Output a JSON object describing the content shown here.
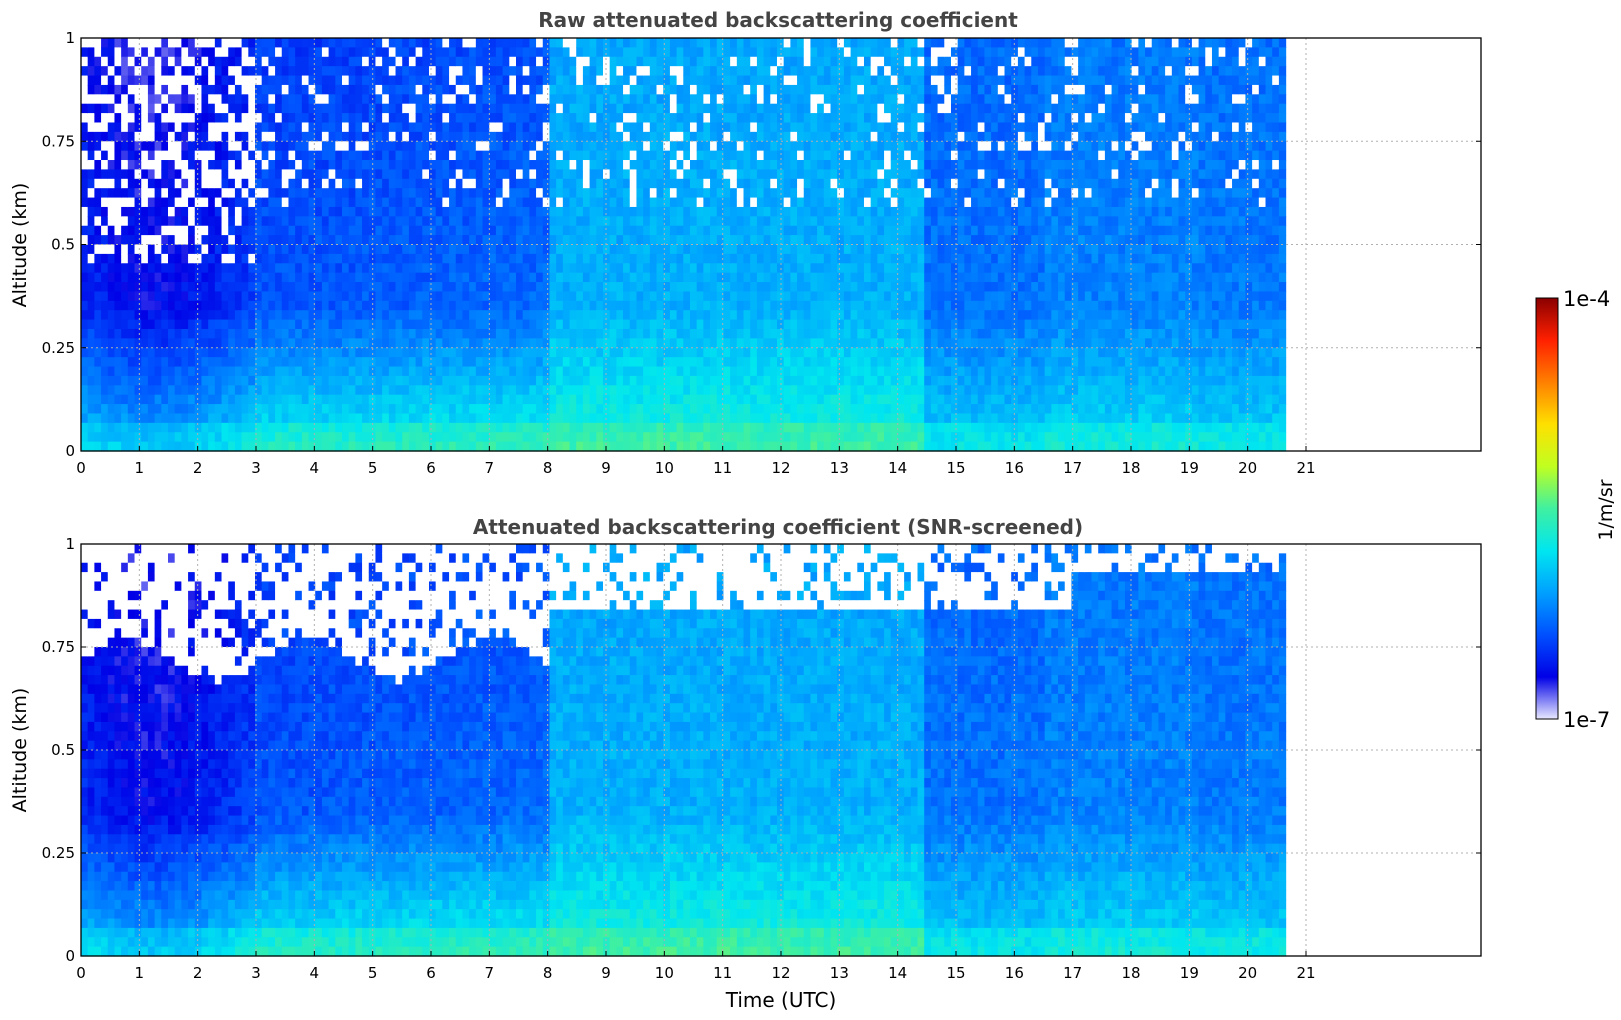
{
  "chart_data": [
    {
      "type": "heatmap",
      "title": "Raw attenuated backscattering coefficient",
      "xlabel": "",
      "ylabel": "Altitude (km)",
      "x_ticks": [
        "0",
        "1",
        "2",
        "3",
        "4",
        "5",
        "6",
        "7",
        "8",
        "9",
        "10",
        "11",
        "12",
        "13",
        "14",
        "15",
        "16",
        "17",
        "18",
        "19",
        "20",
        "21"
      ],
      "y_ticks": [
        "0",
        "0.25",
        "0.5",
        "0.75",
        "1"
      ],
      "xlim": [
        0,
        24
      ],
      "ylim": [
        0,
        1
      ],
      "data_extent_x": [
        0,
        20.65
      ],
      "grid": true,
      "description": "Time-altitude curtain; mostly dark blue above ~0.3 km before 8 UTC with noisy white/blue speckle above ~0.5 km, turning cyan/green after 8 UTC; dark blue patches around 14.4-18 UTC aloft; highest values near the ground."
    },
    {
      "type": "heatmap",
      "title": "Attenuated backscattering coefficient (SNR-screened)",
      "xlabel": "Time (UTC)",
      "ylabel": "Altitude (km)",
      "x_ticks": [
        "0",
        "1",
        "2",
        "3",
        "4",
        "5",
        "6",
        "7",
        "8",
        "9",
        "10",
        "11",
        "12",
        "13",
        "14",
        "15",
        "16",
        "17",
        "18",
        "19",
        "20",
        "21"
      ],
      "y_ticks": [
        "0",
        "0.25",
        "0.5",
        "0.75",
        "1"
      ],
      "xlim": [
        0,
        24
      ],
      "ylim": [
        0,
        1
      ],
      "data_extent_x": [
        0,
        20.65
      ],
      "grid": true,
      "description": "Same curtain with low-SNR pixels removed (white) mostly above ~0.7 km before 8 UTC and in gaps between 9-17 UTC."
    }
  ],
  "colorbar": {
    "label": "1/m/sr",
    "max_label": "1e-4",
    "min_label": "1e-7",
    "scale": "log",
    "range": [
      1e-07,
      0.0001
    ],
    "colormap": [
      "#e8e8ff",
      "#0000e6",
      "#0050ff",
      "#00a0ff",
      "#00e6f0",
      "#40f0a0",
      "#c0ff20",
      "#ffe000",
      "#ff8000",
      "#ff2000",
      "#8b0000"
    ]
  }
}
